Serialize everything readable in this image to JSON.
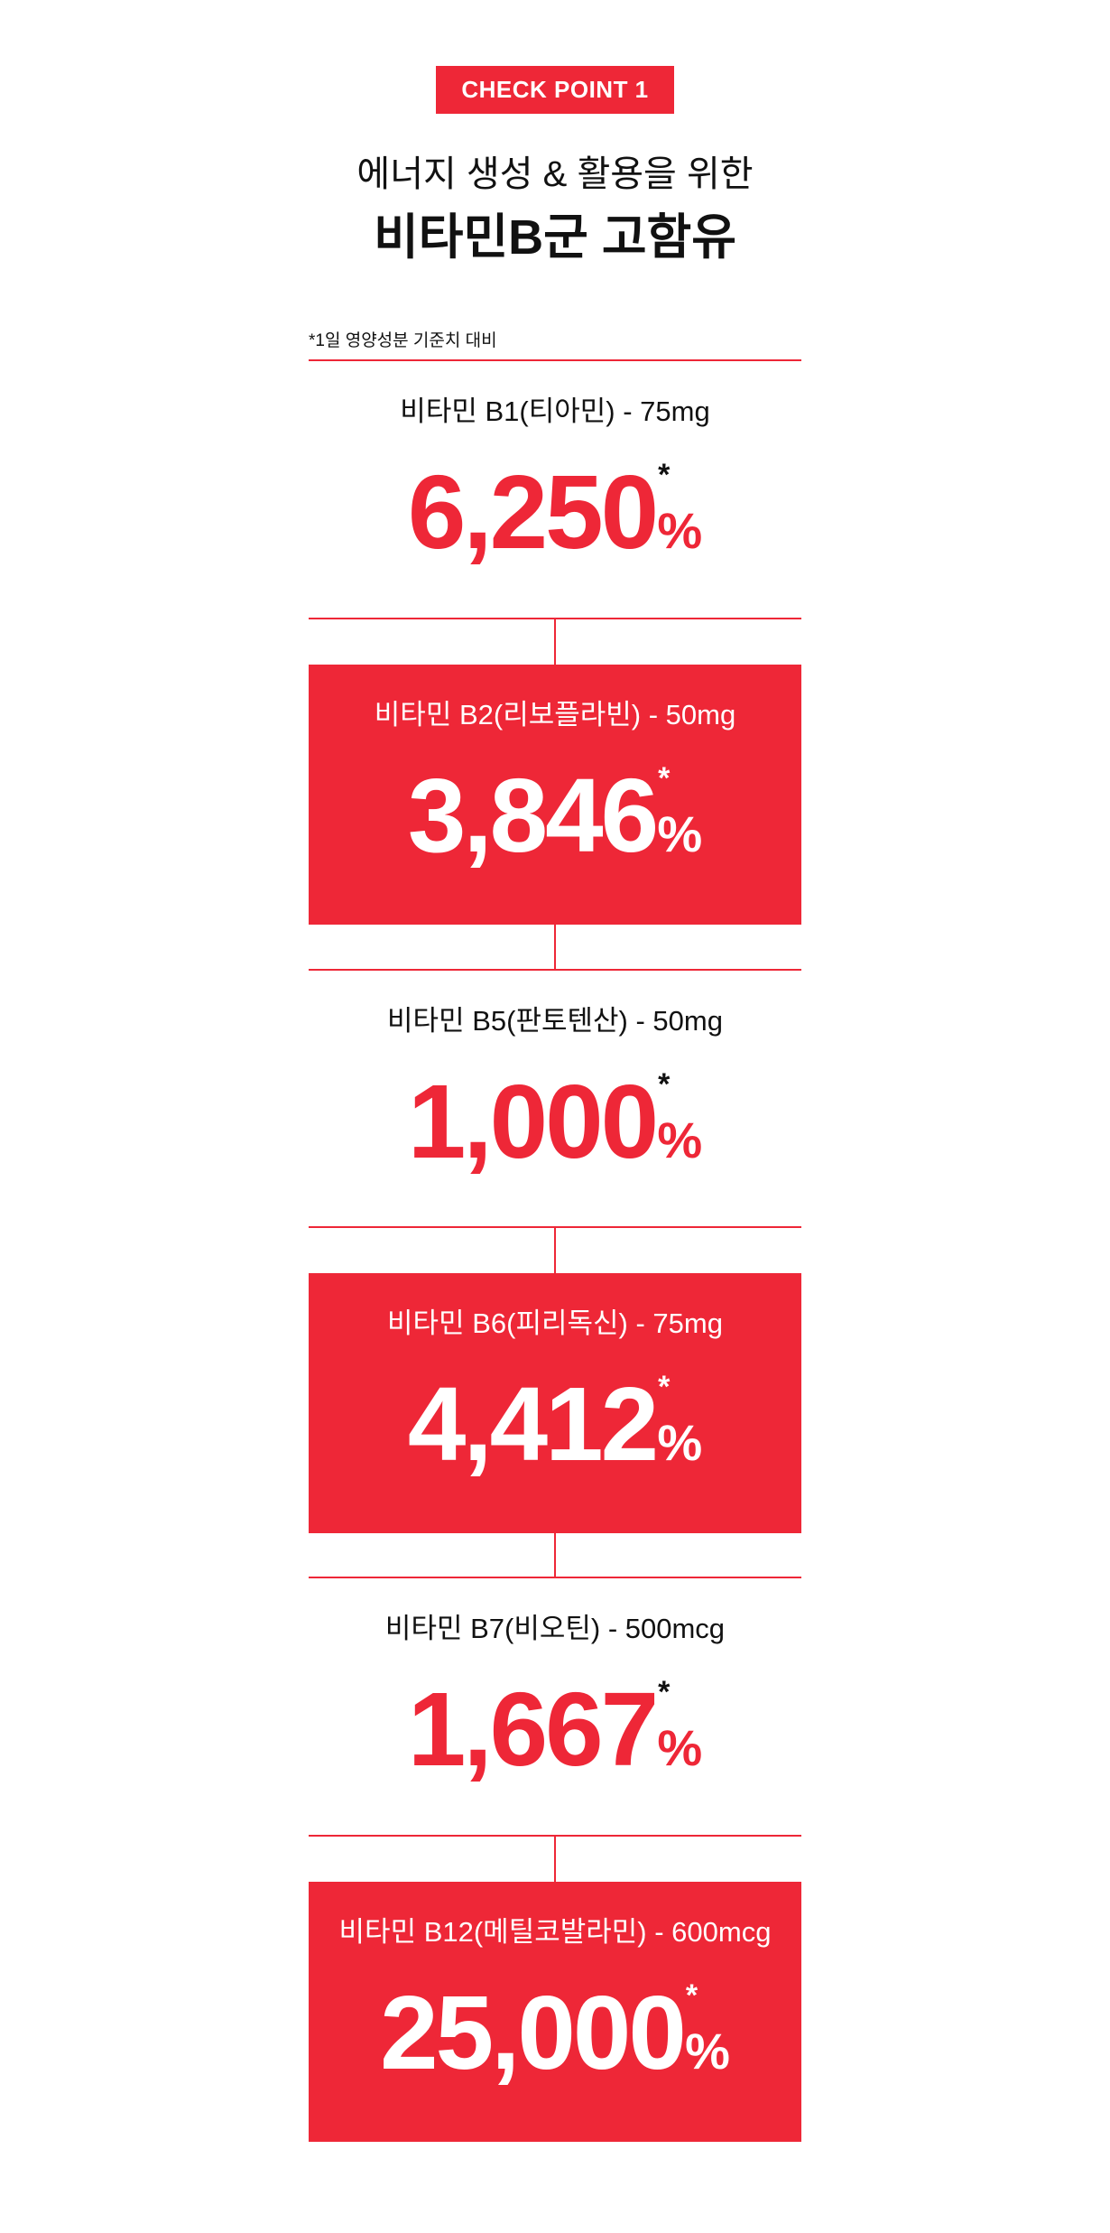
{
  "header": {
    "badge": "CHECK POINT 1",
    "subtitle": "에너지 생성 & 활용을 위한",
    "headline": "비타민B군 고함유"
  },
  "footnote": "*1일 영양성분 기준치 대비",
  "colors": {
    "accent": "#ee2737",
    "text": "#111111",
    "background": "#ffffff"
  },
  "vitamins": [
    {
      "label": "비타민 B1(티아민) - 75mg",
      "value": "6,250",
      "asterisk": "*",
      "unit": "%",
      "style": "plain"
    },
    {
      "label": "비타민 B2(리보플라빈) - 50mg",
      "value": "3,846",
      "asterisk": "*",
      "unit": "%",
      "style": "filled"
    },
    {
      "label": "비타민 B5(판토텐산) - 50mg",
      "value": "1,000",
      "asterisk": "*",
      "unit": "%",
      "style": "plain"
    },
    {
      "label": "비타민 B6(피리독신) - 75mg",
      "value": "4,412",
      "asterisk": "*",
      "unit": "%",
      "style": "filled"
    },
    {
      "label": "비타민 B7(비오틴) - 500mcg",
      "value": "1,667",
      "asterisk": "*",
      "unit": "%",
      "style": "plain"
    },
    {
      "label": "비타민 B12(메틸코발라민) - 600mcg",
      "value": "25,000",
      "asterisk": "*",
      "unit": "%",
      "style": "filled"
    }
  ]
}
